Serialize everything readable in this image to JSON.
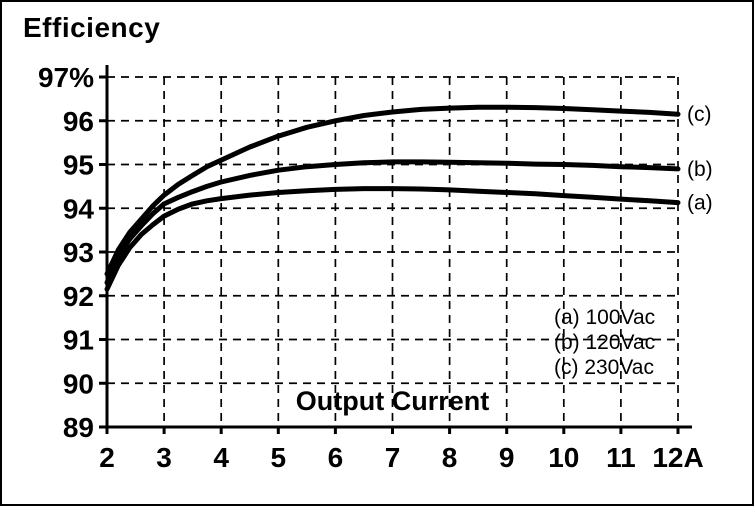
{
  "figure": {
    "background": "#ffffff",
    "border_color": "#000000"
  },
  "chart_data": {
    "type": "line",
    "title": "Efficiency",
    "xlabel": "Output Current",
    "ylabel": "Efficiency (%)",
    "xlim": [
      2,
      12
    ],
    "ylim": [
      89,
      97
    ],
    "x_tick_values": [
      2,
      3,
      4,
      5,
      6,
      7,
      8,
      9,
      10,
      11,
      12
    ],
    "x_tick_labels": [
      "2",
      "3",
      "4",
      "5",
      "6",
      "7",
      "8",
      "9",
      "10",
      "11",
      "12A"
    ],
    "y_tick_values": [
      97,
      96,
      95,
      94,
      93,
      92,
      91,
      90,
      89
    ],
    "y_tick_labels": [
      "97%",
      "96",
      "95",
      "94",
      "93",
      "92",
      "91",
      "90",
      "89"
    ],
    "grid": true,
    "grid_style": "dashed",
    "line_color": "#000000",
    "legend_position": "inside lower-right",
    "x": [
      2,
      2.2,
      2.4,
      2.6,
      2.8,
      3,
      3.25,
      3.5,
      3.75,
      4,
      4.5,
      5,
      5.5,
      6,
      6.5,
      7,
      7.5,
      8,
      8.5,
      9,
      9.5,
      10,
      10.5,
      11,
      11.5,
      12
    ],
    "series": [
      {
        "name": "(a)",
        "legend": "(a)  100Vac",
        "values": [
          92.15,
          92.7,
          93.1,
          93.4,
          93.62,
          93.82,
          93.98,
          94.1,
          94.17,
          94.22,
          94.3,
          94.36,
          94.4,
          94.43,
          94.45,
          94.45,
          94.44,
          94.42,
          94.39,
          94.36,
          94.33,
          94.29,
          94.25,
          94.21,
          94.17,
          94.13
        ]
      },
      {
        "name": "(b)",
        "legend": "(b)  120Vac",
        "values": [
          92.3,
          92.9,
          93.3,
          93.6,
          93.87,
          94.1,
          94.25,
          94.38,
          94.5,
          94.6,
          94.75,
          94.87,
          94.95,
          95.0,
          95.04,
          95.06,
          95.06,
          95.05,
          95.04,
          95.03,
          95.01,
          95.0,
          94.98,
          94.95,
          94.93,
          94.9
        ]
      },
      {
        "name": "(c)",
        "legend": "(c)  230Vac",
        "values": [
          92.5,
          93.05,
          93.45,
          93.75,
          94.05,
          94.3,
          94.55,
          94.75,
          94.95,
          95.1,
          95.4,
          95.65,
          95.85,
          96.0,
          96.12,
          96.2,
          96.26,
          96.29,
          96.31,
          96.31,
          96.3,
          96.28,
          96.25,
          96.22,
          96.19,
          96.15
        ]
      }
    ]
  }
}
